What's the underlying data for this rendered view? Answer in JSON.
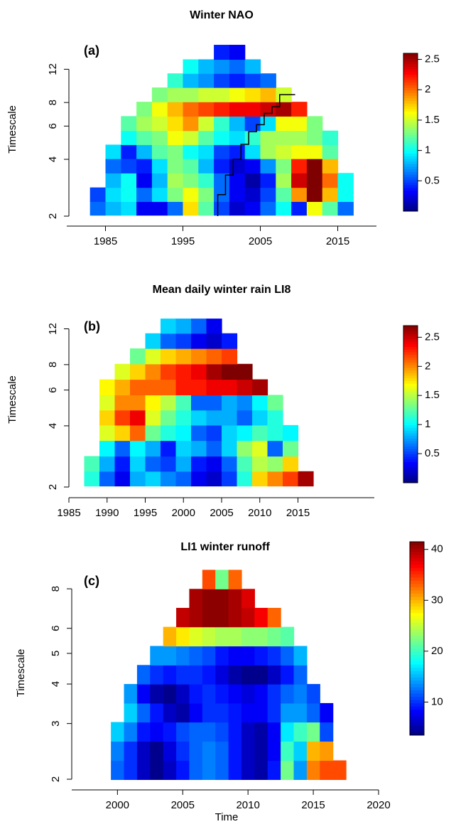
{
  "chart_data": [
    {
      "type": "heatmap",
      "title": "Winter NAO",
      "panel_label": "(a)",
      "ylabel": "Timescale",
      "y_scale": "log",
      "xlim": [
        1980,
        2020
      ],
      "xticks": [
        1985,
        1995,
        2005,
        2015
      ],
      "ylim": [
        2,
        16.6
      ],
      "yticks": [
        2,
        4,
        6,
        8,
        12
      ],
      "zlim": [
        0,
        2.6
      ],
      "zticks": [
        0.5,
        1.0,
        1.5,
        2.0,
        2.5
      ],
      "colormap": [
        "#00007f",
        "#0000ff",
        "#007fff",
        "#00ffff",
        "#7fff7f",
        "#ffff00",
        "#ff7f00",
        "#ff0000",
        "#7f0000"
      ],
      "x": [
        1984,
        1986,
        1988,
        1990,
        1992,
        1994,
        1996,
        1998,
        2000,
        2002,
        2004,
        2006,
        2008,
        2010,
        2012,
        2014,
        2016
      ],
      "y": [
        2.2,
        2.6,
        3.1,
        3.7,
        4.4,
        5.2,
        6.2,
        7.4,
        8.8,
        10.5,
        12.4,
        14.8
      ],
      "values": [
        [
          0.6,
          0.8,
          0.9,
          0.3,
          0.3,
          0.6,
          1.7,
          1.2,
          0.5,
          0.2,
          0.3,
          0.6,
          1.0,
          0.4,
          1.6,
          1.2,
          0.6
        ],
        [
          0.5,
          0.9,
          1.0,
          0.6,
          0.9,
          1.3,
          1.6,
          1.3,
          0.6,
          0.3,
          0.2,
          0.5,
          1.2,
          1.9,
          2.6,
          1.8,
          1.0
        ],
        [
          null,
          0.8,
          1.0,
          0.3,
          0.8,
          1.4,
          1.3,
          1.1,
          0.6,
          0.3,
          0.1,
          0.4,
          1.4,
          2.4,
          2.6,
          2.0,
          1.0
        ],
        [
          null,
          0.6,
          0.5,
          0.4,
          0.9,
          1.3,
          1.2,
          0.8,
          0.4,
          0.2,
          0.3,
          0.7,
          1.3,
          2.2,
          2.6,
          1.8,
          null
        ],
        [
          null,
          0.9,
          0.4,
          0.8,
          1.2,
          1.3,
          1.0,
          0.9,
          0.5,
          0.4,
          0.9,
          1.4,
          1.5,
          1.6,
          1.6,
          1.2,
          null
        ],
        [
          null,
          null,
          1.0,
          1.2,
          1.3,
          1.6,
          1.5,
          1.2,
          1.0,
          0.9,
          1.1,
          1.4,
          1.4,
          1.4,
          1.3,
          1.1,
          null
        ],
        [
          null,
          null,
          1.2,
          1.4,
          1.5,
          1.7,
          1.9,
          1.5,
          1.1,
          0.8,
          0.5,
          0.9,
          1.6,
          1.6,
          1.3,
          null,
          null
        ],
        [
          null,
          null,
          null,
          1.3,
          1.6,
          1.8,
          2.0,
          2.1,
          2.2,
          2.3,
          2.3,
          2.4,
          2.5,
          2.2,
          null,
          null,
          null
        ],
        [
          null,
          null,
          null,
          null,
          1.3,
          1.4,
          1.4,
          1.5,
          1.5,
          1.6,
          1.7,
          1.8,
          1.5,
          null,
          null,
          null,
          null
        ],
        [
          null,
          null,
          null,
          null,
          null,
          1.1,
          0.8,
          0.7,
          0.5,
          0.4,
          0.5,
          0.6,
          null,
          null,
          null,
          null,
          null
        ],
        [
          null,
          null,
          null,
          null,
          null,
          null,
          1.0,
          0.8,
          0.7,
          0.6,
          0.8,
          null,
          null,
          null,
          null,
          null,
          null
        ],
        [
          null,
          null,
          null,
          null,
          null,
          null,
          null,
          null,
          0.4,
          0.3,
          null,
          null,
          null,
          null,
          null,
          null,
          null
        ]
      ],
      "contour": {
        "color": "#000000",
        "x": [
          1999.5,
          1999.5,
          2000.5,
          2000.5,
          2001.5,
          2001.5,
          2002.5,
          2002.5,
          2003.5,
          2003.5,
          2004.5,
          2004.5,
          2005.5,
          2005.5,
          2006.5,
          2006.5,
          2007.5,
          2007.5,
          2009.5
        ],
        "y": [
          2,
          2.6,
          2.6,
          3.3,
          3.3,
          4.0,
          4.0,
          4.8,
          4.8,
          5.6,
          5.6,
          6.1,
          6.1,
          7.0,
          7.0,
          7.6,
          7.6,
          8.8,
          8.8
        ]
      }
    },
    {
      "type": "heatmap",
      "title": "Mean daily winter rain LI8",
      "panel_label": "(b)",
      "ylabel": "Timescale",
      "y_scale": "log",
      "xlim": [
        1985,
        2025
      ],
      "xticks": [
        1985,
        1990,
        1995,
        2000,
        2005,
        2010,
        2015
      ],
      "ylim": [
        2,
        14.5
      ],
      "yticks": [
        2,
        4,
        6,
        8,
        12
      ],
      "zlim": [
        0,
        2.7
      ],
      "zticks": [
        0.5,
        1.0,
        1.5,
        2.0,
        2.5
      ],
      "colormap": [
        "#00007f",
        "#0000ff",
        "#007fff",
        "#00ffff",
        "#7fff7f",
        "#ffff00",
        "#ff7f00",
        "#ff0000",
        "#7f0000"
      ],
      "x": [
        1988,
        1990,
        1992,
        1994,
        1996,
        1998,
        2000,
        2002,
        2004,
        2006,
        2008,
        2010,
        2012,
        2014,
        2016
      ],
      "y": [
        2.2,
        2.6,
        3.1,
        3.7,
        4.4,
        5.2,
        6.2,
        7.4,
        8.8,
        10.5,
        12.4
      ],
      "values": [
        [
          1.1,
          0.6,
          0.3,
          0.8,
          0.9,
          0.7,
          0.6,
          0.3,
          0.2,
          0.5,
          1.1,
          1.8,
          2.0,
          2.2,
          2.6
        ],
        [
          1.2,
          0.8,
          0.4,
          0.9,
          0.6,
          0.5,
          0.8,
          0.4,
          0.3,
          0.6,
          1.2,
          1.5,
          1.4,
          1.8,
          null
        ],
        [
          null,
          1.0,
          0.6,
          1.0,
          0.8,
          0.4,
          0.9,
          0.8,
          0.6,
          0.9,
          1.4,
          1.6,
          0.6,
          1.3,
          null
        ],
        [
          null,
          1.6,
          1.8,
          2.1,
          1.3,
          1.1,
          1.0,
          0.6,
          0.5,
          0.9,
          1.0,
          1.2,
          1.1,
          1.0,
          null
        ],
        [
          null,
          1.8,
          2.2,
          2.4,
          1.6,
          1.3,
          1.1,
          0.9,
          0.8,
          0.8,
          0.6,
          0.9,
          1.1,
          null,
          null
        ],
        [
          null,
          1.6,
          2.0,
          2.0,
          1.7,
          1.5,
          1.2,
          0.6,
          0.6,
          0.8,
          0.7,
          1.0,
          1.3,
          null,
          null
        ],
        [
          null,
          1.7,
          1.9,
          2.1,
          2.1,
          2.1,
          2.3,
          2.3,
          2.4,
          2.4,
          2.5,
          2.6,
          null,
          null,
          null
        ],
        [
          null,
          null,
          1.6,
          1.8,
          2.0,
          2.2,
          2.3,
          2.4,
          2.6,
          2.7,
          2.7,
          null,
          null,
          null,
          null
        ],
        [
          null,
          null,
          null,
          1.3,
          1.6,
          1.8,
          1.9,
          2.0,
          2.1,
          2.2,
          null,
          null,
          null,
          null,
          null
        ],
        [
          null,
          null,
          null,
          null,
          0.9,
          0.6,
          0.5,
          0.3,
          0.2,
          0.4,
          null,
          null,
          null,
          null,
          null
        ],
        [
          null,
          null,
          null,
          null,
          null,
          0.9,
          0.8,
          0.6,
          0.3,
          null,
          null,
          null,
          null,
          null,
          null
        ]
      ]
    },
    {
      "type": "heatmap",
      "title": "LI1 winter runoff",
      "panel_label": "(c)",
      "ylabel": "Timescale",
      "xlabel": "Time",
      "y_scale": "log",
      "xlim": [
        1996.5,
        2020
      ],
      "xticks": [
        2000,
        2005,
        2010,
        2015,
        2020
      ],
      "ylim": [
        2,
        9.4
      ],
      "yticks": [
        2,
        3,
        4,
        5,
        6,
        8
      ],
      "zlim": [
        3.5,
        41.5
      ],
      "zticks": [
        10,
        20,
        30,
        40
      ],
      "colormap": [
        "#00007f",
        "#0000ff",
        "#007fff",
        "#00ffff",
        "#7fff7f",
        "#ffff00",
        "#ff7f00",
        "#ff0000",
        "#7f0000"
      ],
      "x": [
        2000,
        2001,
        2002,
        2003,
        2004,
        2005,
        2006,
        2007,
        2008,
        2009,
        2010,
        2011,
        2012,
        2013,
        2014,
        2015,
        2016,
        2017
      ],
      "y": [
        2.14,
        2.46,
        2.83,
        3.25,
        3.73,
        4.29,
        4.92,
        5.66,
        6.5,
        7.46,
        8.57
      ],
      "values": [
        [
          12,
          10,
          6,
          4,
          6,
          9,
          12,
          13,
          12,
          9,
          6,
          5,
          9,
          22,
          14,
          32,
          34,
          34
        ],
        [
          13,
          10,
          6,
          4,
          7,
          10,
          12,
          13,
          12,
          9,
          6,
          5,
          8,
          20,
          16,
          30,
          31,
          null
        ],
        [
          16,
          13,
          9,
          8,
          9,
          11,
          12,
          12,
          11,
          9,
          6,
          5,
          8,
          17,
          20,
          22,
          11,
          null
        ],
        [
          null,
          16,
          12,
          9,
          6,
          5,
          8,
          10,
          10,
          9,
          8,
          8,
          10,
          14,
          14,
          12,
          8,
          null
        ],
        [
          null,
          14,
          8,
          5,
          4,
          6,
          9,
          10,
          9,
          8,
          7,
          8,
          10,
          12,
          13,
          11,
          null,
          null
        ],
        [
          null,
          null,
          12,
          10,
          9,
          10,
          10,
          9,
          7,
          5,
          4,
          4,
          6,
          9,
          12,
          null,
          null,
          null
        ],
        [
          null,
          null,
          null,
          14,
          14,
          13,
          12,
          11,
          9,
          8,
          8,
          9,
          10,
          12,
          15,
          null,
          null,
          null
        ],
        [
          null,
          null,
          null,
          null,
          30,
          28,
          26,
          25,
          24,
          24,
          23,
          23,
          22,
          21,
          null,
          null,
          null,
          null
        ],
        [
          null,
          null,
          null,
          null,
          null,
          39,
          40,
          41,
          41,
          40,
          39,
          37,
          33,
          null,
          null,
          null,
          null,
          null
        ],
        [
          null,
          null,
          null,
          null,
          null,
          null,
          40,
          41,
          41,
          40,
          38,
          null,
          null,
          null,
          null,
          null,
          null,
          null
        ],
        [
          null,
          null,
          null,
          null,
          null,
          null,
          null,
          34,
          22,
          33,
          null,
          null,
          null,
          null,
          null,
          null,
          null,
          null
        ]
      ]
    }
  ]
}
